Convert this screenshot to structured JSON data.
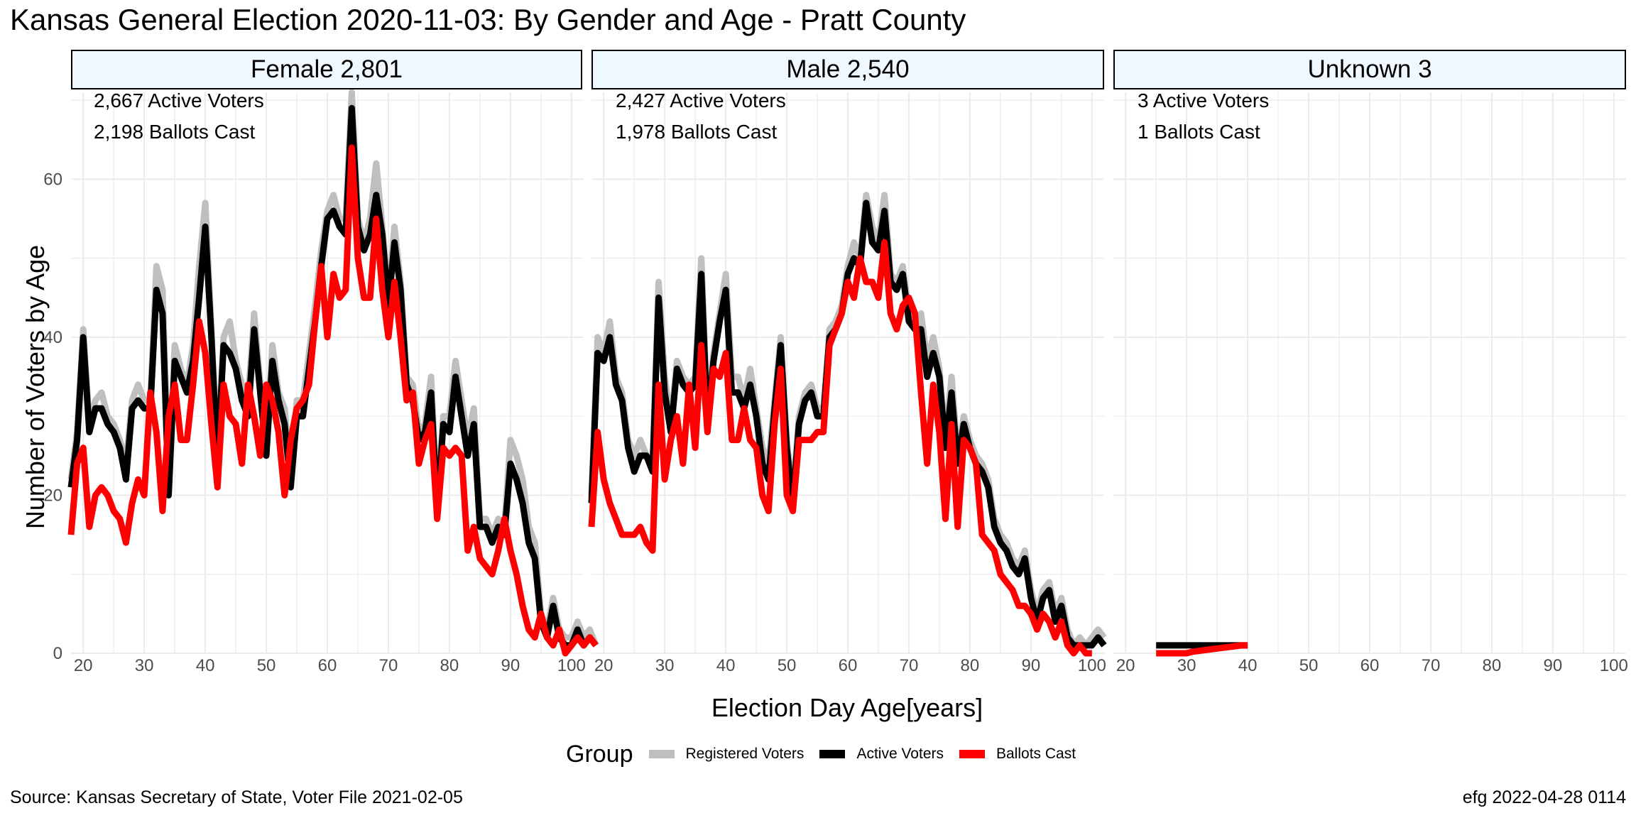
{
  "title": "Kansas General Election 2020-11-03:  By Gender and Age - Pratt County",
  "caption_left": "Source:  Kansas Secretary of State, Voter File  2021-02-05",
  "caption_right": "efg 2022-04-28 0114",
  "xlabel": "Election Day Age[years]",
  "ylabel": "Number of Voters by Age",
  "legend": {
    "title": "Group",
    "items": [
      {
        "label": "Registered Voters",
        "color": "#bfbfbf"
      },
      {
        "label": "Active Voters",
        "color": "#000000"
      },
      {
        "label": "Ballots Cast",
        "color": "#ff0000"
      }
    ]
  },
  "panels": [
    {
      "strip": "Female 2,801",
      "active_text": "2,667 Active Voters",
      "ballots_text": "2,198 Ballots Cast"
    },
    {
      "strip": "Male 2,540",
      "active_text": "2,427 Active Voters",
      "ballots_text": "1,978 Ballots Cast"
    },
    {
      "strip": "Unknown 3",
      "active_text": "3 Active Voters",
      "ballots_text": "1 Ballots Cast"
    }
  ],
  "chart_data": {
    "type": "line",
    "facets": [
      "Female 2,801",
      "Male 2,540",
      "Unknown 3"
    ],
    "xlabel": "Election Day Age[years]",
    "ylabel": "Number of Voters by Age",
    "xlim": [
      18,
      102
    ],
    "ylim": [
      0,
      71
    ],
    "x_ticks": [
      20,
      30,
      40,
      50,
      60,
      70,
      80,
      90,
      100
    ],
    "y_ticks": [
      0,
      20,
      40,
      60
    ],
    "grid": true,
    "legend_position": "bottom",
    "series_order": [
      "Registered Voters",
      "Active Voters",
      "Ballots Cast"
    ],
    "panels": [
      {
        "facet": "Female 2,801",
        "x_start": 18,
        "series": [
          {
            "name": "Registered Voters",
            "values": [
              22,
              28,
              41,
              29,
              32,
              33,
              30,
              29,
              27,
              24,
              32,
              34,
              32,
              32,
              49,
              46,
              22,
              39,
              36,
              34,
              39,
              49,
              57,
              41,
              25,
              40,
              42,
              37,
              34,
              32,
              43,
              34,
              26,
              39,
              33,
              31,
              22,
              32,
              32,
              38,
              44,
              51,
              56,
              58,
              55,
              55,
              71,
              55,
              52,
              55,
              62,
              54,
              45,
              54,
              47,
              35,
              34,
              28,
              29,
              35,
              19,
              30,
              30,
              37,
              32,
              27,
              31,
              17,
              17,
              15,
              17,
              16,
              27,
              25,
              22,
              16,
              14,
              5,
              3,
              7,
              3,
              2,
              2,
              4,
              2,
              3,
              1
            ]
          },
          {
            "name": "Active Voters",
            "values": [
              21,
              27,
              40,
              28,
              31,
              31,
              29,
              28,
              26,
              22,
              31,
              32,
              31,
              31,
              46,
              43,
              20,
              37,
              35,
              33,
              37,
              45,
              54,
              40,
              24,
              39,
              38,
              36,
              32,
              30,
              41,
              33,
              25,
              37,
              32,
              29,
              21,
              30,
              30,
              36,
              42,
              49,
              55,
              56,
              54,
              53,
              69,
              54,
              51,
              53,
              58,
              53,
              44,
              52,
              46,
              34,
              32,
              27,
              28,
              33,
              18,
              29,
              28,
              35,
              30,
              25,
              29,
              16,
              16,
              14,
              16,
              15,
              24,
              22,
              19,
              14,
              12,
              4,
              2,
              6,
              2,
              1,
              1,
              3,
              1,
              2,
              1
            ]
          },
          {
            "name": "Ballots Cast",
            "values": [
              15,
              24,
              26,
              16,
              20,
              21,
              20,
              18,
              17,
              14,
              19,
              22,
              20,
              33,
              28,
              18,
              30,
              34,
              27,
              27,
              34,
              42,
              38,
              29,
              21,
              34,
              30,
              29,
              24,
              34,
              30,
              25,
              34,
              32,
              28,
              20,
              27,
              31,
              32,
              34,
              42,
              49,
              40,
              48,
              45,
              46,
              64,
              50,
              45,
              45,
              55,
              46,
              40,
              47,
              40,
              32,
              33,
              24,
              27,
              29,
              17,
              26,
              25,
              26,
              25,
              13,
              16,
              12,
              11,
              10,
              13,
              17,
              13,
              10,
              6,
              3,
              2,
              5,
              2,
              1,
              3,
              0,
              1,
              2,
              1,
              2,
              1
            ]
          }
        ]
      },
      {
        "facet": "Male 2,540",
        "x_start": 18,
        "series": [
          {
            "name": "Registered Voters",
            "values": [
              20,
              40,
              38,
              42,
              35,
              33,
              27,
              25,
              27,
              25,
              24,
              47,
              35,
              29,
              37,
              35,
              34,
              35,
              50,
              30,
              38,
              43,
              48,
              35,
              35,
              32,
              36,
              31,
              26,
              24,
              32,
              40,
              27,
              20,
              30,
              33,
              34,
              31,
              31,
              41,
              42,
              44,
              49,
              52,
              50,
              58,
              54,
              52,
              58,
              48,
              47,
              49,
              43,
              42,
              43,
              37,
              40,
              36,
              27,
              35,
              25,
              30,
              27,
              25,
              24,
              22,
              17,
              15,
              14,
              12,
              11,
              13,
              8,
              5,
              8,
              9,
              5,
              7,
              3,
              1,
              2,
              1,
              2,
              3,
              2
            ]
          },
          {
            "name": "Active Voters",
            "values": [
              19,
              38,
              37,
              40,
              34,
              32,
              26,
              23,
              25,
              25,
              23,
              45,
              33,
              28,
              36,
              34,
              33,
              34,
              48,
              29,
              37,
              42,
              46,
              33,
              33,
              31,
              34,
              30,
              24,
              22,
              31,
              39,
              26,
              19,
              29,
              32,
              33,
              30,
              30,
              40,
              41,
              43,
              48,
              50,
              49,
              57,
              52,
              51,
              56,
              47,
              46,
              48,
              42,
              41,
              41,
              35,
              38,
              35,
              26,
              33,
              24,
              29,
              26,
              24,
              23,
              21,
              16,
              14,
              13,
              11,
              10,
              12,
              7,
              4,
              7,
              8,
              4,
              6,
              2,
              1,
              1,
              1,
              1,
              2,
              1
            ]
          },
          {
            "name": "Ballots Cast",
            "values": [
              16,
              28,
              22,
              19,
              17,
              15,
              15,
              15,
              16,
              14,
              13,
              34,
              22,
              27,
              30,
              24,
              34,
              26,
              39,
              28,
              36,
              35,
              38,
              27,
              27,
              31,
              27,
              26,
              20,
              18,
              29,
              36,
              20,
              18,
              27,
              27,
              27,
              28,
              28,
              39,
              41,
              43,
              47,
              45,
              50,
              47,
              47,
              45,
              52,
              43,
              41,
              44,
              45,
              43,
              33,
              24,
              34,
              28,
              17,
              29,
              16,
              27,
              26,
              24,
              15,
              14,
              13,
              10,
              9,
              8,
              6,
              6,
              5,
              3,
              5,
              4,
              2,
              4,
              1,
              0,
              1,
              0,
              0
            ]
          }
        ]
      },
      {
        "facet": "Unknown 3",
        "x_start": 25,
        "series": [
          {
            "name": "Registered Voters",
            "values": [
              1,
              1,
              1,
              1,
              1,
              1,
              1,
              1,
              1,
              1,
              1,
              1,
              1,
              1,
              1,
              1
            ]
          },
          {
            "name": "Active Voters",
            "values": [
              1,
              1,
              1,
              1,
              1,
              1,
              1,
              1,
              1,
              1,
              1,
              1,
              1,
              1,
              1,
              1
            ]
          },
          {
            "name": "Ballots Cast",
            "values": [
              0,
              0,
              0,
              0,
              0,
              0,
              0.2,
              0.3,
              0.4,
              0.5,
              0.6,
              0.7,
              0.8,
              0.9,
              1,
              1
            ]
          }
        ]
      }
    ]
  }
}
